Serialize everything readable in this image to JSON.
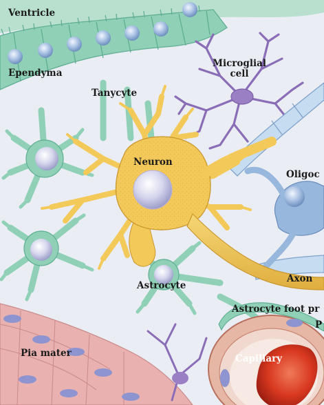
{
  "labels": {
    "ventricle": "Ventricle",
    "ependyma": "Ependyma",
    "tanycyte": "Tanycyte",
    "microglial_cell": "Microglial\ncell",
    "neuron": "Neuron",
    "oligodendrocyte": "Oligoc",
    "astrocyte": "Astrocyte",
    "axon": "Axon",
    "astrocyte_foot_process": "Astrocyte foot pr",
    "pericyte": "P",
    "pia_mater": "Pia mater",
    "capillary": "Capillary"
  },
  "colors": {
    "background": "#eaeef4",
    "ventricle": "#b9e0cf",
    "glia_green": "#8fd0b6",
    "glia_outline": "#5fae93",
    "neuron_fill": "#f3c95a",
    "neuron_outline": "#c9962e",
    "microglia": "#9b7fc4",
    "oligodendrocyte": "#98b7dc",
    "myelin": "#c6dcf1",
    "pia": "#e9b1b0",
    "capillary_wall": "#d8998b",
    "blood": "#d63a26",
    "nucleus": "#c9cbe6"
  }
}
